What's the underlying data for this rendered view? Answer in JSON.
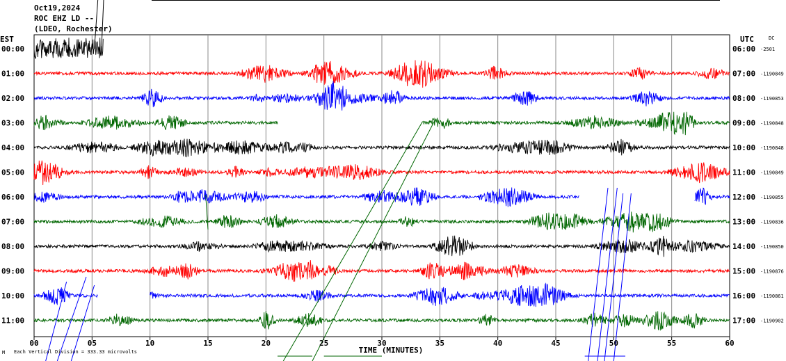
{
  "header": {
    "date": "Oct19,2024",
    "station": "ROC EHZ LD --",
    "location": "(LDEO, Rochester)"
  },
  "left_tz": "EST",
  "right_tz": "UTC",
  "dc_label": "DC",
  "x_axis_title": "TIME (MINUTES)",
  "footer": "Each Vertical Division = 333.33 microvolts",
  "chart_data": {
    "type": "line",
    "title": "",
    "xlabel": "TIME (MINUTES)",
    "ylabel": "",
    "xlim": [
      0,
      60
    ],
    "x_ticks": [
      "00",
      "05",
      "10",
      "15",
      "20",
      "25",
      "30",
      "35",
      "40",
      "45",
      "50",
      "55",
      "60"
    ],
    "grid": true,
    "rows": [
      {
        "est": "00:00",
        "utc": "06:00",
        "dc": "-2501",
        "color": "#000000",
        "start": 0,
        "end": 6
      },
      {
        "est": "01:00",
        "utc": "07:00",
        "dc": "-1190849",
        "color": "#ff0000",
        "start": 0,
        "end": 60
      },
      {
        "est": "02:00",
        "utc": "08:00",
        "dc": "-1190853",
        "color": "#0000ff",
        "start": 0,
        "end": 60
      },
      {
        "est": "03:00",
        "utc": "09:00",
        "dc": "-1190848",
        "color": "#006600",
        "start": 0,
        "end": 60,
        "gap": [
          21,
          33.5
        ]
      },
      {
        "est": "04:00",
        "utc": "10:00",
        "dc": "-1190848",
        "color": "#000000",
        "start": 0,
        "end": 60
      },
      {
        "est": "05:00",
        "utc": "11:00",
        "dc": "-1190849",
        "color": "#ff0000",
        "start": 0,
        "end": 60
      },
      {
        "est": "06:00",
        "utc": "12:00",
        "dc": "-1190855",
        "color": "#0000ff",
        "start": 0,
        "end": 60,
        "gap": [
          47,
          57
        ]
      },
      {
        "est": "07:00",
        "utc": "13:00",
        "dc": "-1190836",
        "color": "#006600",
        "start": 0,
        "end": 60
      },
      {
        "est": "08:00",
        "utc": "14:00",
        "dc": "-1190850",
        "color": "#000000",
        "start": 0,
        "end": 60
      },
      {
        "est": "09:00",
        "utc": "15:00",
        "dc": "-1190876",
        "color": "#ff0000",
        "start": 0,
        "end": 60
      },
      {
        "est": "10:00",
        "utc": "16:00",
        "dc": "-1190861",
        "color": "#0000ff",
        "start": 0,
        "end": 60,
        "gap": [
          5.5,
          10
        ]
      },
      {
        "est": "11:00",
        "utc": "17:00",
        "dc": "-1190902",
        "color": "#006600",
        "start": 0,
        "end": 60
      }
    ]
  }
}
